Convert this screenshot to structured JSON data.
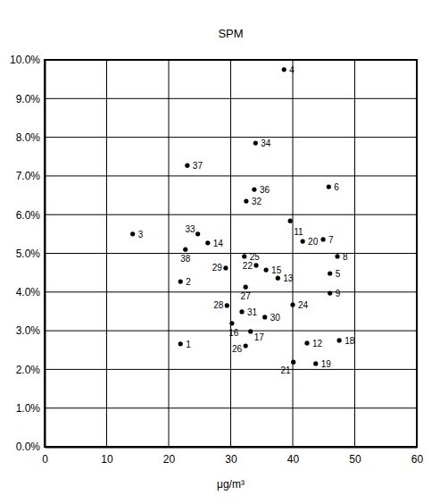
{
  "chart_data": {
    "type": "scatter",
    "title": "SPM",
    "x_label": "μg/m³",
    "labels": [
      "1",
      "2",
      "3",
      "4",
      "5",
      "6",
      "7",
      "8",
      "9",
      "11",
      "12",
      "13",
      "14",
      "15",
      "16",
      "17",
      "18",
      "19",
      "20",
      "21",
      "22",
      "24",
      "25",
      "26",
      "27",
      "28",
      "29",
      "30",
      "31",
      "32",
      "33",
      "34",
      "36",
      "37",
      "38"
    ],
    "x": [
      21.9,
      21.9,
      14.2,
      38.6,
      46.0,
      45.8,
      44.9,
      47.2,
      46.0,
      39.6,
      42.3,
      37.6,
      26.3,
      35.7,
      30.2,
      33.2,
      47.5,
      43.7,
      41.6,
      40.1,
      34.1,
      40.0,
      32.2,
      32.4,
      32.4,
      29.4,
      29.2,
      35.5,
      31.8,
      32.5,
      24.7,
      34.0,
      33.8,
      23.0,
      22.7
    ],
    "y": [
      2.66,
      4.27,
      5.5,
      9.75,
      4.48,
      6.72,
      5.36,
      4.92,
      3.97,
      5.84,
      2.68,
      4.36,
      5.27,
      4.57,
      3.19,
      2.98,
      2.75,
      2.15,
      5.31,
      2.19,
      4.69,
      3.67,
      4.92,
      2.61,
      4.13,
      3.65,
      4.62,
      3.35,
      3.49,
      6.35,
      5.5,
      7.85,
      6.65,
      7.27,
      5.1
    ],
    "color": "#000000",
    "marker": "circle",
    "xlim": [
      0,
      60
    ],
    "xticks": [
      0,
      10,
      20,
      30,
      40,
      50,
      60
    ],
    "ylim": [
      0,
      10
    ],
    "yticks": [
      {
        "value": 0,
        "label": "0.0%"
      },
      {
        "value": 1,
        "label": "1.0%"
      },
      {
        "value": 2,
        "label": "2.0%"
      },
      {
        "value": 3,
        "label": "3.0%"
      },
      {
        "value": 4,
        "label": "4.0%"
      },
      {
        "value": 5,
        "label": "5.0%"
      },
      {
        "value": 6,
        "label": "6.0%"
      },
      {
        "value": 7,
        "label": "7.0%"
      },
      {
        "value": 8,
        "label": "8.0%"
      },
      {
        "value": 9,
        "label": "9.0%"
      },
      {
        "value": 10,
        "label": "10.0%"
      }
    ],
    "grid": true
  }
}
